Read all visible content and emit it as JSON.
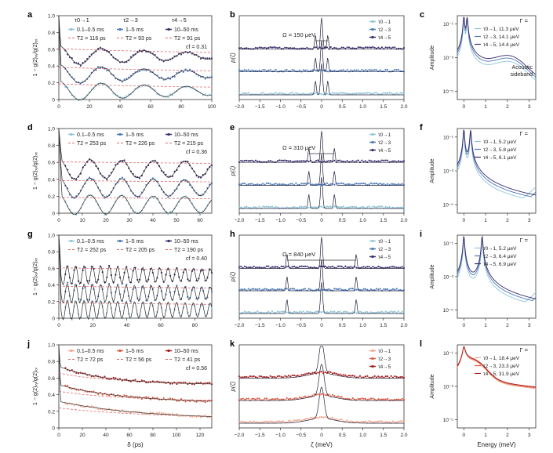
{
  "rows": [
    {
      "a": {
        "letter": "a",
        "xlabel": "",
        "xlim": [
          0,
          100
        ],
        "ticks": [
          0,
          20,
          40,
          60,
          80,
          100
        ],
        "header": [
          "τ0→1",
          "τ2→3",
          "τ4→5"
        ],
        "ranges": [
          "0.1–0.5 ms",
          "1–5 ms",
          "10–50 ms"
        ],
        "t2": [
          "T2 = 116 ps",
          "T2 = 93 ps",
          "T2 = 91 ps"
        ],
        "cf": "cf = 0.31"
      },
      "b": {
        "letter": "b",
        "xlabel": "",
        "omega": "Ω = 150 μeV",
        "side_peak_mev": 0.15,
        "legend": [
          "τ0→1",
          "τ2→3",
          "τ4→5"
        ]
      },
      "c": {
        "letter": "c",
        "xlabel": "",
        "gamma_title": "Γ =",
        "legend": [
          "τ0→1, 11.3 μeV",
          "τ2→3, 14.1 μeV",
          "τ4→5, 14.4 μeV"
        ],
        "note": [
          "Acoustic",
          "sideband"
        ],
        "peaks_mev": [
          0,
          0.15
        ]
      }
    },
    {
      "a": {
        "letter": "d",
        "xlabel": "",
        "xlim": [
          0,
          65
        ],
        "ticks": [
          0,
          10,
          20,
          30,
          40,
          50,
          60
        ],
        "header": [],
        "ranges": [
          "0.1–0.5 ms",
          "1–5 ms",
          "10–50 ms"
        ],
        "t2": [
          "T2 = 253 ps",
          "T2 = 226 ps",
          "T2 = 215 ps"
        ],
        "cf": "cf = 0.36"
      },
      "b": {
        "letter": "e",
        "xlabel": "",
        "omega": "Ω = 310 μeV",
        "side_peak_mev": 0.31,
        "legend": [
          "τ0→1",
          "τ2→3",
          "τ4→5"
        ]
      },
      "c": {
        "letter": "f",
        "xlabel": "",
        "gamma_title": "Γ =",
        "legend": [
          "τ0→1, 5.2 μeV",
          "τ2→3, 5.8 μeV",
          "τ4→5, 6.1 μeV"
        ],
        "note": [],
        "peaks_mev": [
          0,
          0.31
        ]
      }
    },
    {
      "a": {
        "letter": "g",
        "xlabel": "",
        "xlim": [
          0,
          90
        ],
        "ticks": [
          0,
          20,
          40,
          60,
          80
        ],
        "header": [],
        "ranges": [
          "0.1–0.5 ms",
          "1–5 ms",
          "10–50 ms"
        ],
        "t2": [
          "T2 = 252 ps",
          "T2 = 205 ps",
          "T2 = 190 ps"
        ],
        "cf": "cf = 0.40"
      },
      "b": {
        "letter": "h",
        "xlabel": "",
        "omega": "Ω = 840 μeV",
        "side_peak_mev": 0.84,
        "legend": [
          "τ0→1",
          "τ2→3",
          "τ4→5"
        ]
      },
      "c": {
        "letter": "i",
        "xlabel": "",
        "gamma_title": "Γ =",
        "legend": [
          "τ0→1, 5.2 μeV",
          "τ2→3, 6.4 μeV",
          "τ4→5, 6.9 μeV"
        ],
        "note": [],
        "peaks_mev": [
          0,
          0.84
        ]
      }
    },
    {
      "a": {
        "letter": "j",
        "xlabel": "δ (ps)",
        "xlim": [
          0,
          130
        ],
        "ticks": [
          0,
          20,
          40,
          60,
          80,
          100,
          120
        ],
        "header": [],
        "ranges": [
          "0.1–0.5 ms",
          "1–5 ms",
          "10–50 ms"
        ],
        "t2": [
          "T2 = 72 ps",
          "T2 = 56 ps",
          "T2 = 41 ps"
        ],
        "cf": "cf = 0.56"
      },
      "b": {
        "letter": "k",
        "xlabel": "ζ (meV)",
        "omega": "",
        "side_peak_mev": 0,
        "legend": [
          "τ0→1",
          "τ2→3",
          "τ4→5"
        ]
      },
      "c": {
        "letter": "l",
        "xlabel": "Energy (meV)",
        "gamma_title": "Γ =",
        "legend": [
          "τ0→1, 18.4 μeV",
          "τ2→3, 23.3 μeV",
          "τ4→5, 31.9 μeV"
        ],
        "note": [],
        "peaks_mev": [
          0
        ]
      }
    }
  ],
  "axes": {
    "col_a_ylabel": "1 − g(2)ₓᵧ/g(2)ₓₓ",
    "col_a_yticks": [
      "0",
      "0.2",
      "0.4",
      "0.6",
      "0.8",
      "1.0"
    ],
    "col_b_ylabel": "p(ζ)",
    "col_b_xticks": [
      "−2.0",
      "−1.5",
      "−1.0",
      "−0.5",
      "0",
      "0.5",
      "1.0",
      "1.5",
      "2.0"
    ],
    "col_c_ylabel": "Amplitude",
    "col_c_yticks": [
      "10⁻⁵",
      "10⁻³",
      "10⁻¹"
    ],
    "col_c_xticks": [
      "0",
      "1",
      "2",
      "3"
    ]
  },
  "colors": {
    "blue": [
      "#8fc4d8",
      "#4a78b8",
      "#3b2a6a"
    ],
    "red": [
      "#f2a58c",
      "#dd5b43",
      "#a81e1e"
    ],
    "fit_dash": "#e06a6a"
  },
  "chart_data": {
    "type": "line",
    "panels": 12,
    "decay_times_ps": {
      "a": [
        116,
        93,
        91
      ],
      "d": [
        253,
        226,
        215
      ],
      "g": [
        252,
        205,
        190
      ],
      "j": [
        72,
        56,
        41
      ]
    },
    "cf": {
      "a": 0.31,
      "d": 0.36,
      "g": 0.4,
      "j": 0.56
    },
    "omega_mueV": {
      "b": 150,
      "e": 310,
      "h": 840
    },
    "gamma_mueV": {
      "c": [
        11.3,
        14.1,
        14.4
      ],
      "f": [
        5.2,
        5.8,
        6.1
      ],
      "i": [
        5.2,
        6.4,
        6.9
      ],
      "l": [
        18.4,
        23.3,
        31.9
      ]
    }
  }
}
